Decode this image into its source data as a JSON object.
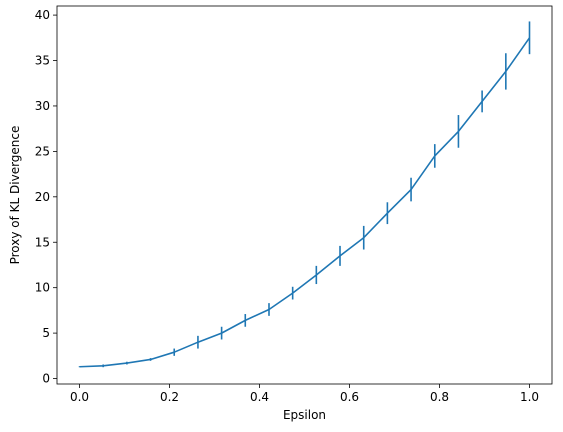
{
  "chart_data": {
    "type": "line",
    "xlabel": "Epsilon",
    "ylabel": "Proxy of KL Divergence",
    "xlim": [
      -0.05,
      1.05
    ],
    "ylim": [
      -0.6,
      41
    ],
    "xticks": [
      0.0,
      0.2,
      0.4,
      0.6,
      0.8,
      1.0
    ],
    "xtick_labels": [
      "0.0",
      "0.2",
      "0.4",
      "0.6",
      "0.8",
      "1.0"
    ],
    "yticks": [
      0,
      5,
      10,
      15,
      20,
      25,
      30,
      35,
      40
    ],
    "ytick_labels": [
      "0",
      "5",
      "10",
      "15",
      "20",
      "25",
      "30",
      "35",
      "40"
    ],
    "grid": false,
    "color": "#1f77b4",
    "series": [
      {
        "x": [
          0.0,
          0.0526,
          0.1053,
          0.1579,
          0.2105,
          0.2632,
          0.3158,
          0.3684,
          0.4211,
          0.4737,
          0.5263,
          0.5789,
          0.6316,
          0.6842,
          0.7368,
          0.7895,
          0.8421,
          0.8947,
          0.9474,
          1.0
        ],
        "y": [
          1.3,
          1.4,
          1.7,
          2.1,
          2.9,
          4.0,
          5.0,
          6.4,
          7.6,
          9.4,
          11.4,
          13.5,
          15.5,
          18.2,
          20.8,
          24.5,
          27.2,
          30.5,
          33.8,
          37.5
        ],
        "yerr": [
          0.05,
          0.15,
          0.15,
          0.15,
          0.4,
          0.7,
          0.7,
          0.7,
          0.7,
          0.7,
          1.0,
          1.1,
          1.3,
          1.2,
          1.3,
          1.3,
          1.8,
          1.2,
          2.0,
          1.8
        ]
      }
    ]
  }
}
